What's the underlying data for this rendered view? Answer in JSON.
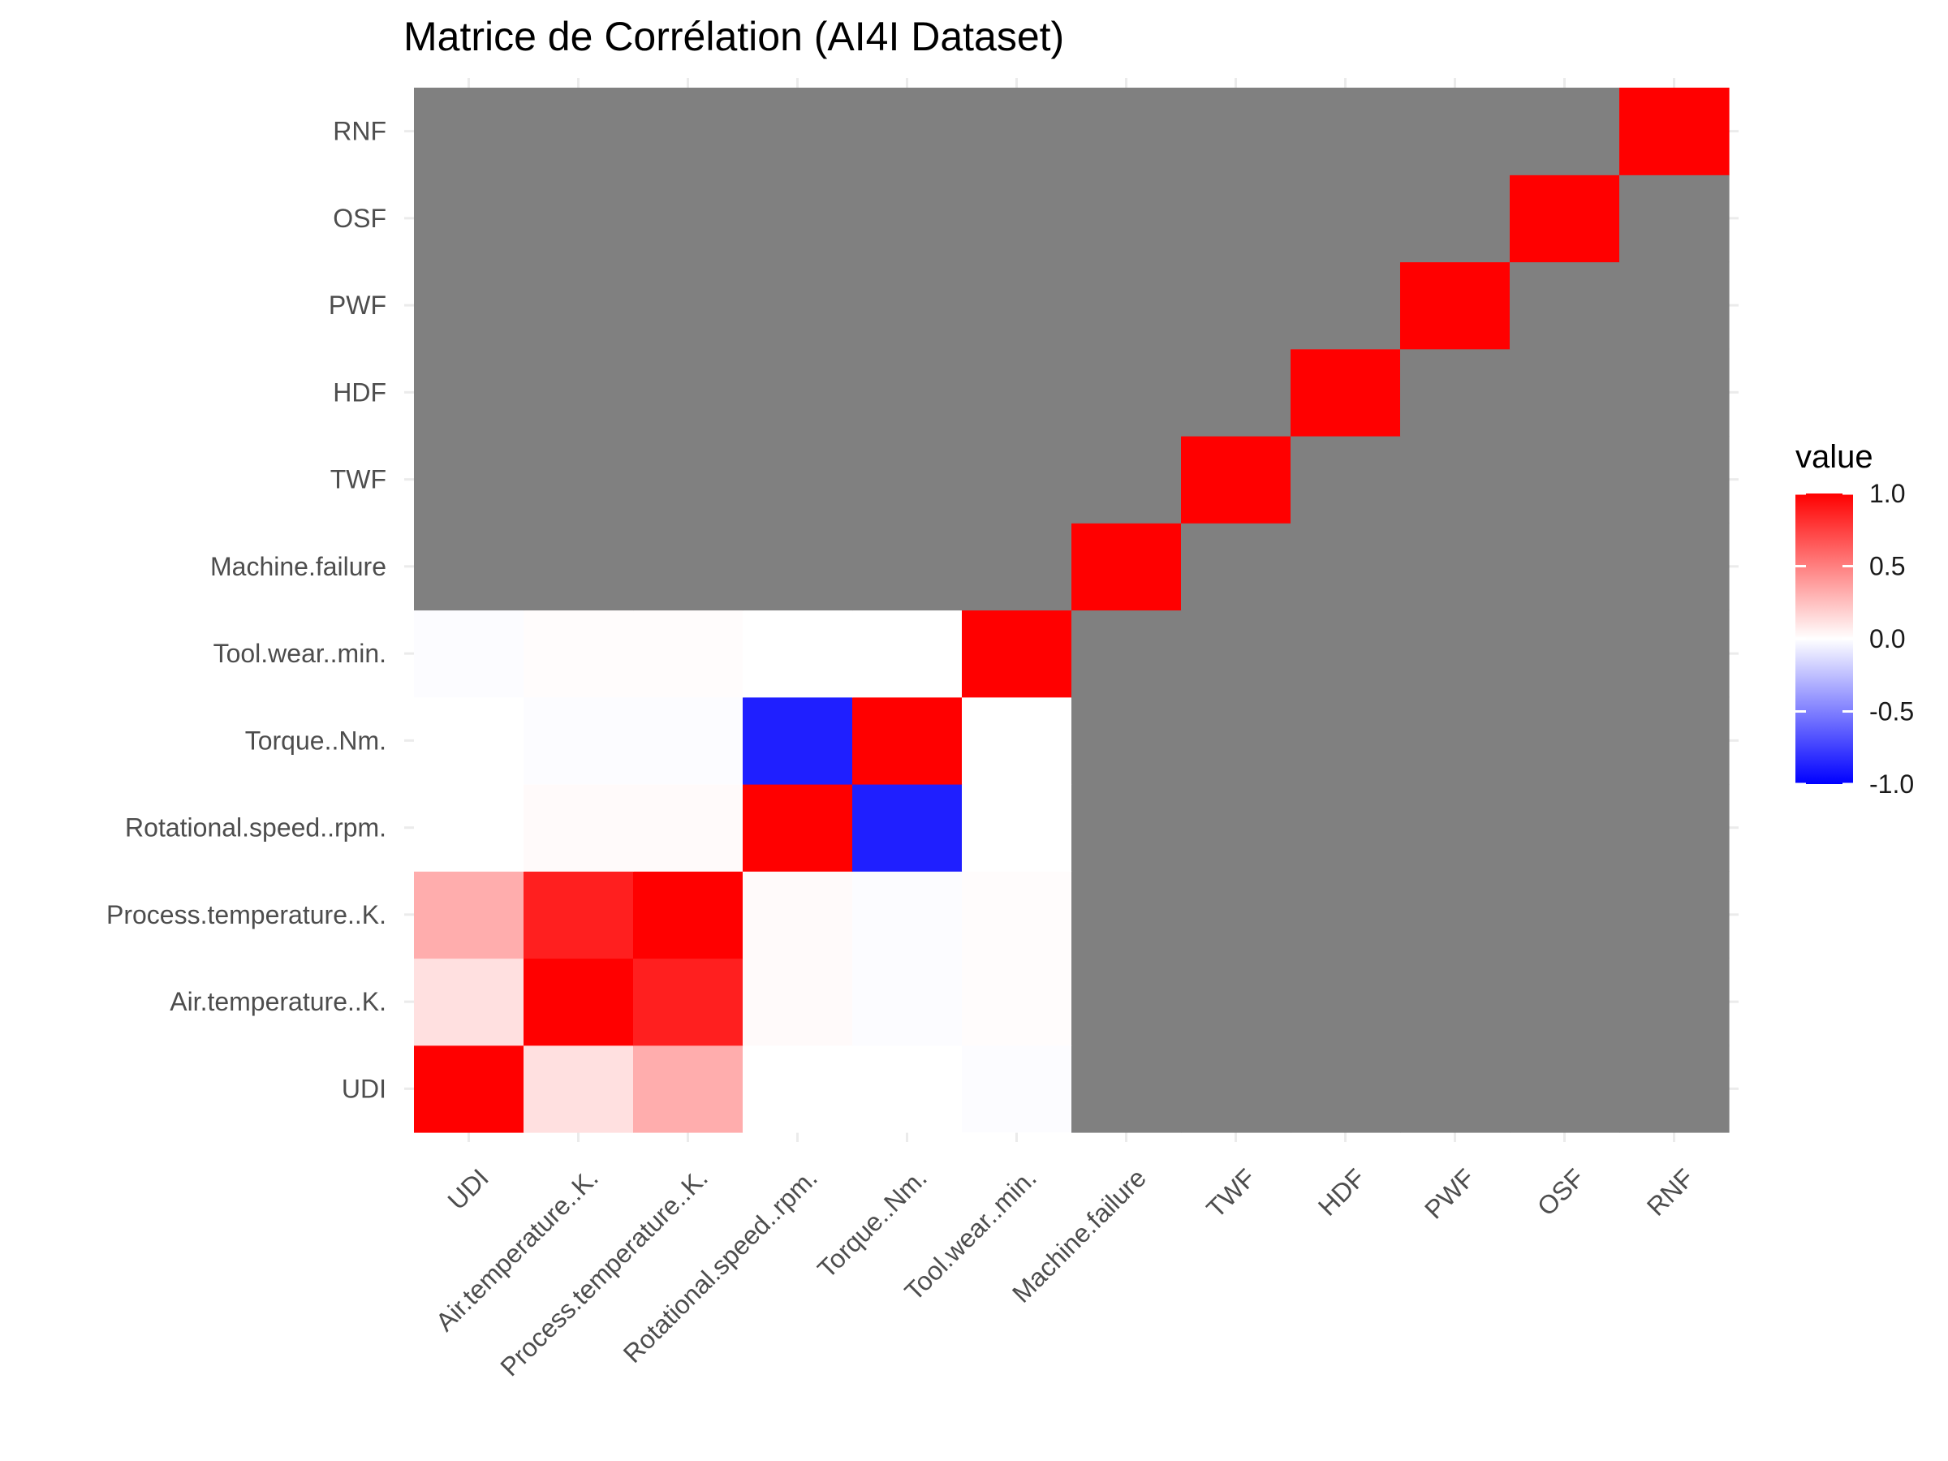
{
  "chart_data": {
    "type": "heatmap",
    "title": "Matrice de Corrélation (AI4I Dataset)",
    "xlabel": "",
    "ylabel": "",
    "variables": [
      "UDI",
      "Air.temperature..K.",
      "Process.temperature..K.",
      "Rotational.speed..rpm.",
      "Torque..Nm.",
      "Tool.wear..min.",
      "Machine.failure",
      "TWF",
      "HDF",
      "PWF",
      "OSF",
      "RNF"
    ],
    "x_categories": [
      "UDI",
      "Air.temperature..K.",
      "Process.temperature..K.",
      "Rotational.speed..rpm.",
      "Torque..Nm.",
      "Tool.wear..min.",
      "Machine.failure",
      "TWF",
      "HDF",
      "PWF",
      "OSF",
      "RNF"
    ],
    "y_categories": [
      "UDI",
      "Air.temperature..K.",
      "Process.temperature..K.",
      "Rotational.speed..rpm.",
      "Torque..Nm.",
      "Tool.wear..min.",
      "Machine.failure",
      "TWF",
      "HDF",
      "PWF",
      "OSF",
      "RNF"
    ],
    "values": [
      [
        1.0,
        0.12,
        0.32,
        0.0,
        0.0,
        -0.01,
        null,
        null,
        null,
        null,
        null,
        null
      ],
      [
        0.12,
        1.0,
        0.88,
        0.02,
        -0.01,
        0.01,
        null,
        null,
        null,
        null,
        null,
        null
      ],
      [
        0.32,
        0.88,
        1.0,
        0.02,
        -0.01,
        0.01,
        null,
        null,
        null,
        null,
        null,
        null
      ],
      [
        0.0,
        0.02,
        0.02,
        1.0,
        -0.88,
        0.0,
        null,
        null,
        null,
        null,
        null,
        null
      ],
      [
        0.0,
        -0.01,
        -0.01,
        -0.88,
        1.0,
        -0.0,
        null,
        null,
        null,
        null,
        null,
        null
      ],
      [
        -0.01,
        0.01,
        0.01,
        0.0,
        -0.0,
        1.0,
        null,
        null,
        null,
        null,
        null,
        null
      ],
      [
        null,
        null,
        null,
        null,
        null,
        null,
        1.0,
        null,
        null,
        null,
        null,
        null
      ],
      [
        null,
        null,
        null,
        null,
        null,
        null,
        null,
        1.0,
        null,
        null,
        null,
        null
      ],
      [
        null,
        null,
        null,
        null,
        null,
        null,
        null,
        null,
        1.0,
        null,
        null,
        null
      ],
      [
        null,
        null,
        null,
        null,
        null,
        null,
        null,
        null,
        null,
        1.0,
        null,
        null
      ],
      [
        null,
        null,
        null,
        null,
        null,
        null,
        null,
        null,
        null,
        null,
        1.0,
        null
      ],
      [
        null,
        null,
        null,
        null,
        null,
        null,
        null,
        null,
        null,
        null,
        null,
        1.0
      ]
    ],
    "na_color": "#808080",
    "color_scale": {
      "low": "#0000ff",
      "mid": "#ffffff",
      "high": "#ff0000",
      "limits": [
        -1,
        1
      ]
    },
    "legend": {
      "title": "value",
      "ticks": [
        1.0,
        0.5,
        0.0,
        -0.5,
        -1.0
      ],
      "tick_labels": [
        "1.0",
        "0.5",
        "0.0",
        "-0.5",
        "-1.0"
      ],
      "position": "right"
    },
    "grid": true
  }
}
